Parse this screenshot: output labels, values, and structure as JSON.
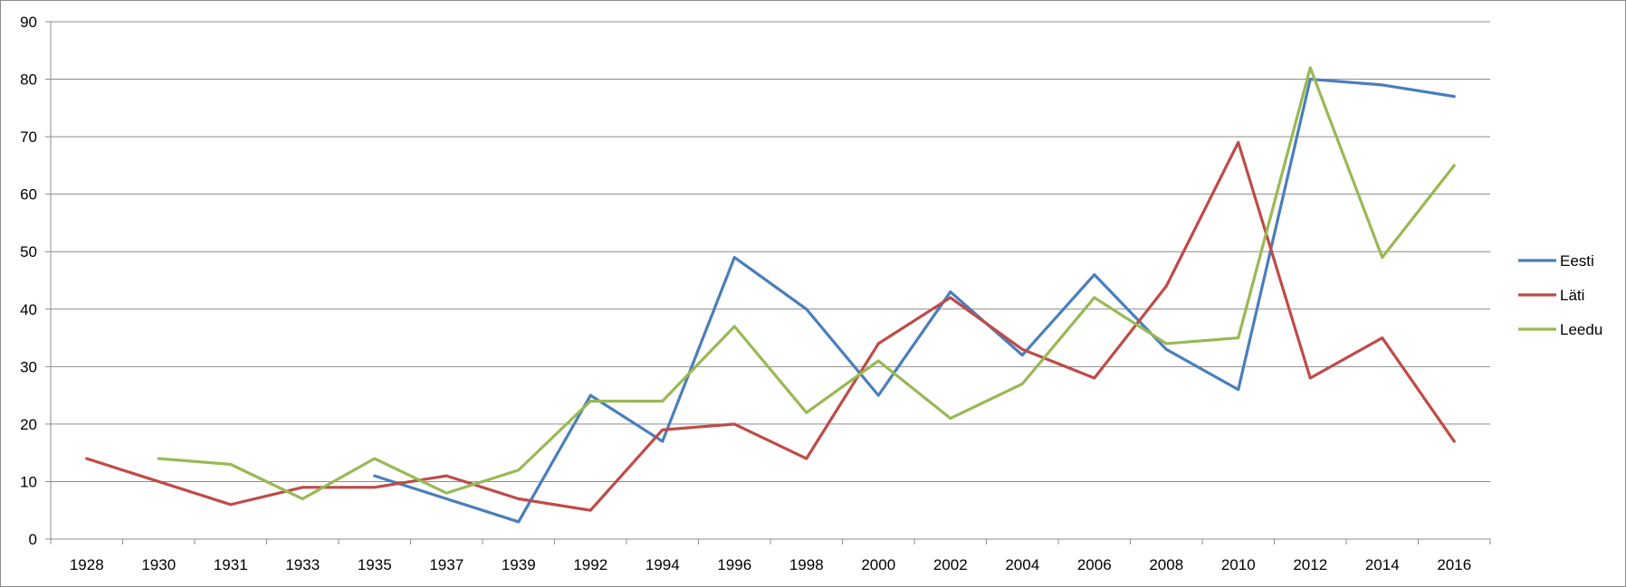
{
  "chart_data": {
    "type": "line",
    "categories": [
      "1928",
      "1930",
      "1931",
      "1933",
      "1935",
      "1937",
      "1939",
      "1992",
      "1994",
      "1996",
      "1998",
      "2000",
      "2002",
      "2004",
      "2006",
      "2008",
      "2010",
      "2012",
      "2014",
      "2016"
    ],
    "ylim": [
      0,
      90
    ],
    "yticks": [
      0,
      10,
      20,
      30,
      40,
      50,
      60,
      70,
      80,
      90
    ],
    "grid": true,
    "legend_position": "right",
    "series": [
      {
        "name": "Eesti",
        "color": "#4a7ebb",
        "values": [
          null,
          null,
          null,
          null,
          11,
          7,
          3,
          25,
          17,
          49,
          40,
          25,
          43,
          32,
          46,
          33,
          26,
          80,
          79,
          77
        ]
      },
      {
        "name": "Läti",
        "color": "#be4b48",
        "values": [
          14,
          10,
          6,
          9,
          9,
          11,
          7,
          5,
          19,
          20,
          14,
          34,
          42,
          33,
          28,
          44,
          69,
          28,
          35,
          17
        ]
      },
      {
        "name": "Leedu",
        "color": "#98b954",
        "values": [
          null,
          14,
          13,
          7,
          14,
          8,
          12,
          24,
          24,
          37,
          22,
          31,
          21,
          27,
          42,
          34,
          35,
          82,
          49,
          65
        ]
      }
    ]
  }
}
